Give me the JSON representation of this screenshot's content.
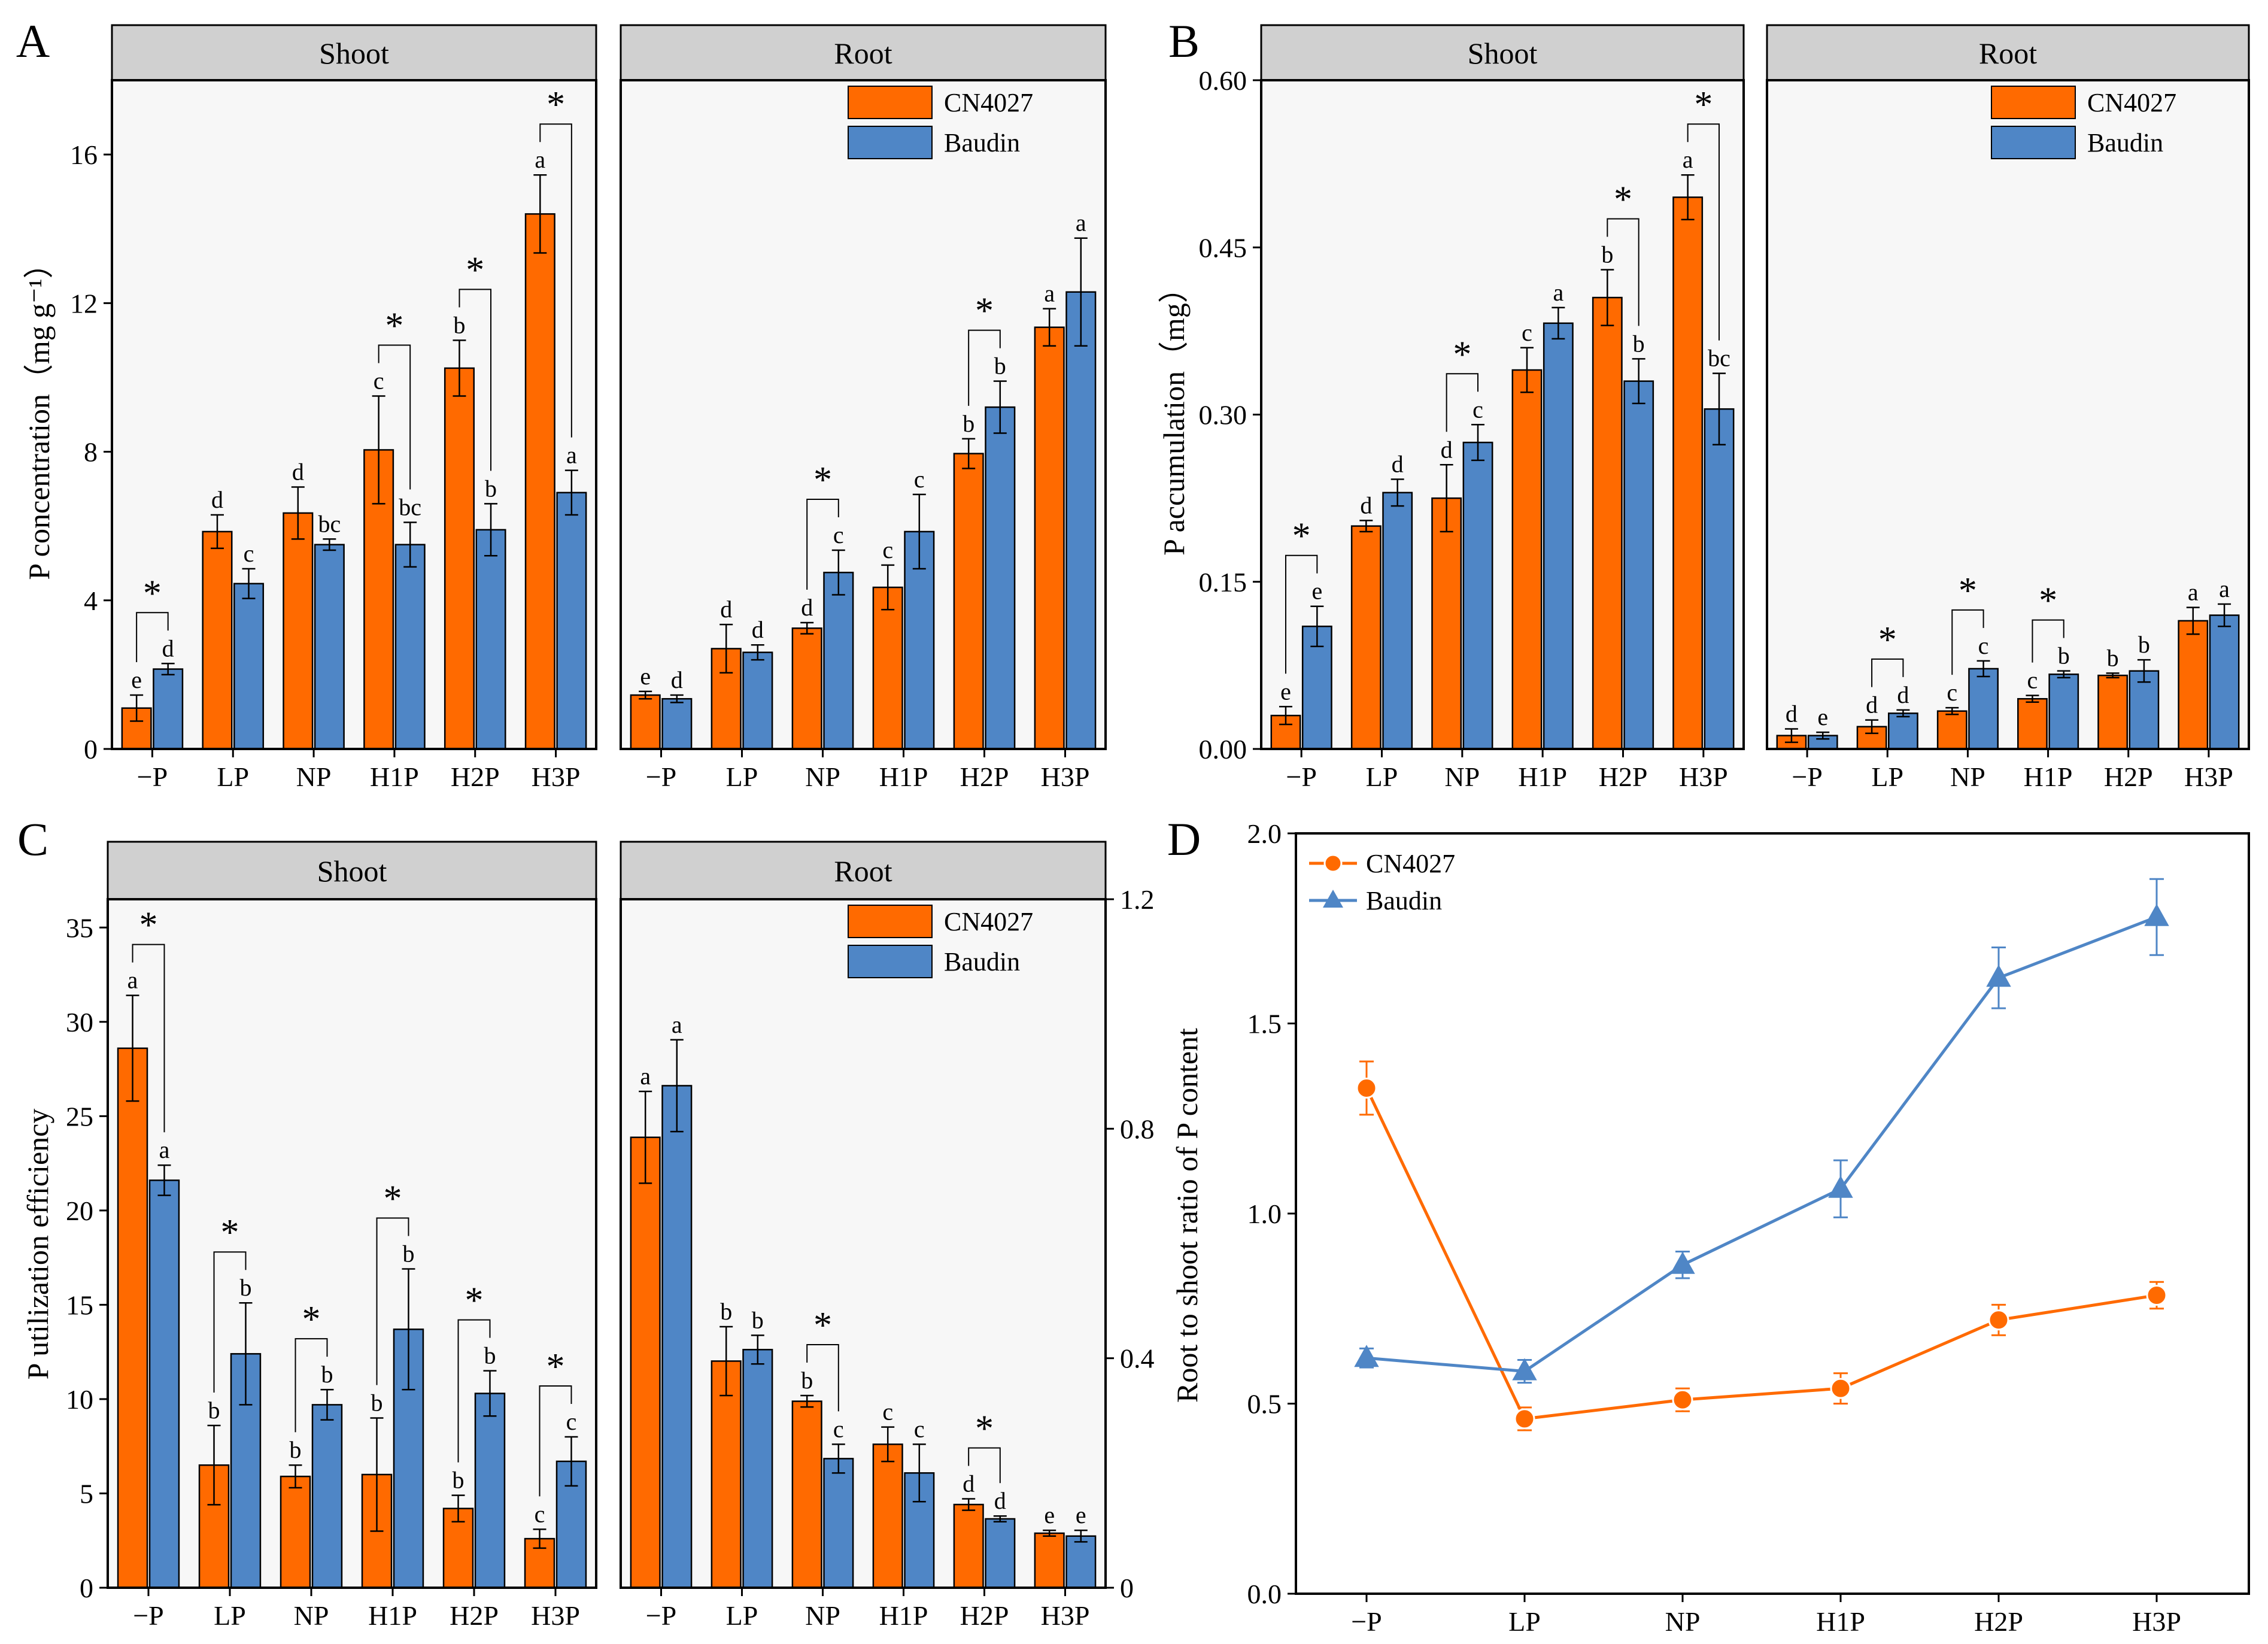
{
  "colors": {
    "cn4027": "#FF6A00",
    "baudin": "#4F86C6",
    "strip": "#D0D0D0",
    "panel_bg": "#F7F7F7"
  },
  "categories": [
    "−P",
    "LP",
    "NP",
    "H1P",
    "H2P",
    "H3P"
  ],
  "legend": [
    "CN4027",
    "Baudin"
  ],
  "chart_data": [
    {
      "panel": "A",
      "type": "bar",
      "ylabel": "P concentration（mg g⁻¹）",
      "ylim": [
        0,
        18
      ],
      "yticks": [
        0,
        4,
        8,
        12,
        16
      ],
      "strips": [
        "Shoot",
        "Root"
      ],
      "facets": [
        {
          "name": "Shoot",
          "series": [
            {
              "name": "CN4027",
              "values": [
                1.1,
                5.85,
                6.35,
                8.05,
                10.25,
                14.4
              ],
              "errors": [
                0.35,
                0.45,
                0.7,
                1.45,
                0.75,
                1.05
              ],
              "letters": [
                "e",
                "d",
                "d",
                "c",
                "b",
                "a"
              ]
            },
            {
              "name": "Baudin",
              "values": [
                2.15,
                4.45,
                5.5,
                5.5,
                5.9,
                6.9
              ],
              "errors": [
                0.15,
                0.4,
                0.15,
                0.6,
                0.7,
                0.6
              ],
              "letters": [
                "d",
                "c",
                "bc",
                "bc",
                "b",
                "a"
              ]
            }
          ],
          "significant": [
            true,
            false,
            false,
            true,
            true,
            true
          ]
        },
        {
          "name": "Root",
          "series": [
            {
              "name": "CN4027",
              "values": [
                1.45,
                2.7,
                3.25,
                4.35,
                7.95,
                11.35
              ],
              "errors": [
                0.1,
                0.65,
                0.15,
                0.6,
                0.4,
                0.5
              ],
              "letters": [
                "e",
                "d",
                "d",
                "c",
                "b",
                "a"
              ]
            },
            {
              "name": "Baudin",
              "values": [
                1.35,
                2.6,
                4.75,
                5.85,
                9.2,
                12.3
              ],
              "errors": [
                0.1,
                0.2,
                0.6,
                1.0,
                0.7,
                1.45
              ],
              "letters": [
                "d",
                "d",
                "c",
                "c",
                "b",
                "a"
              ]
            }
          ],
          "significant": [
            false,
            false,
            true,
            false,
            true,
            false
          ]
        }
      ]
    },
    {
      "panel": "B",
      "type": "bar",
      "ylabel": "P accumulation（mg）",
      "ylim": [
        0,
        0.6
      ],
      "yticks": [
        "0.00",
        "0.15",
        "0.30",
        "0.45",
        "0.60"
      ],
      "strips": [
        "Shoot",
        "Root"
      ],
      "facets": [
        {
          "name": "Shoot",
          "series": [
            {
              "name": "CN4027",
              "values": [
                0.03,
                0.2,
                0.225,
                0.34,
                0.405,
                0.495
              ],
              "errors": [
                0.008,
                0.005,
                0.03,
                0.02,
                0.025,
                0.02
              ],
              "letters": [
                "e",
                "d",
                "d",
                "c",
                "b",
                "a"
              ]
            },
            {
              "name": "Baudin",
              "values": [
                0.11,
                0.23,
                0.275,
                0.382,
                0.33,
                0.305
              ],
              "errors": [
                0.018,
                0.012,
                0.016,
                0.014,
                0.02,
                0.032
              ],
              "letters": [
                "e",
                "d",
                "c",
                "a",
                "b",
                "bc"
              ]
            }
          ],
          "significant": [
            true,
            false,
            true,
            false,
            true,
            true
          ]
        },
        {
          "name": "Root",
          "series": [
            {
              "name": "CN4027",
              "values": [
                0.012,
                0.02,
                0.034,
                0.045,
                0.066,
                0.115
              ],
              "errors": [
                0.006,
                0.006,
                0.003,
                0.003,
                0.002,
                0.012
              ],
              "letters": [
                "d",
                "d",
                "c",
                "c",
                "b",
                "a"
              ]
            },
            {
              "name": "Baudin",
              "values": [
                0.012,
                0.032,
                0.072,
                0.067,
                0.07,
                0.12
              ],
              "errors": [
                0.003,
                0.003,
                0.007,
                0.003,
                0.01,
                0.01
              ],
              "letters": [
                "e",
                "d",
                "c",
                "b",
                "b",
                "a"
              ]
            }
          ],
          "significant": [
            false,
            true,
            true,
            true,
            false,
            false
          ]
        }
      ]
    },
    {
      "panel": "C",
      "type": "bar",
      "ylabel": "P utilization efficiency",
      "strips": [
        "Shoot",
        "Root"
      ],
      "facets": [
        {
          "name": "Shoot",
          "ylim": [
            0,
            36.5
          ],
          "yticks": [
            0,
            5,
            10,
            15,
            20,
            25,
            30,
            35
          ],
          "series": [
            {
              "name": "CN4027",
              "values": [
                28.6,
                6.5,
                5.9,
                6.0,
                4.2,
                2.6
              ],
              "errors": [
                2.8,
                2.1,
                0.6,
                3.0,
                0.7,
                0.5
              ],
              "letters": [
                "a",
                "b",
                "b",
                "b",
                "b",
                "c"
              ]
            },
            {
              "name": "Baudin",
              "values": [
                21.6,
                12.4,
                9.7,
                13.7,
                10.3,
                6.7
              ],
              "errors": [
                0.8,
                2.7,
                0.8,
                3.2,
                1.2,
                1.3
              ],
              "letters": [
                "a",
                "b",
                "b",
                "b",
                "b",
                "c"
              ]
            }
          ],
          "significant": [
            true,
            true,
            true,
            true,
            true,
            true
          ]
        },
        {
          "name": "Root",
          "ylim": [
            0,
            1.2
          ],
          "yticks": [
            "0",
            "0.4",
            "0.8",
            "1.2"
          ],
          "series": [
            {
              "name": "CN4027",
              "values": [
                0.785,
                0.395,
                0.325,
                0.25,
                0.145,
                0.095
              ],
              "errors": [
                0.08,
                0.06,
                0.01,
                0.03,
                0.01,
                0.005
              ],
              "letters": [
                "a",
                "b",
                "b",
                "c",
                "d",
                "e"
              ]
            },
            {
              "name": "Baudin",
              "values": [
                0.875,
                0.415,
                0.225,
                0.2,
                0.12,
                0.09
              ],
              "errors": [
                0.08,
                0.025,
                0.025,
                0.05,
                0.005,
                0.01
              ],
              "letters": [
                "a",
                "b",
                "c",
                "c",
                "d",
                "e"
              ]
            }
          ],
          "significant": [
            false,
            false,
            true,
            false,
            true,
            false
          ]
        }
      ]
    },
    {
      "panel": "D",
      "type": "line",
      "ylabel": "Root to shoot ratio of P content",
      "ylim": [
        0,
        2.0
      ],
      "yticks": [
        "0.0",
        "0.5",
        "1.0",
        "1.5",
        "2.0"
      ],
      "series": [
        {
          "name": "CN4027",
          "marker": "circle",
          "values": [
            1.33,
            0.46,
            0.51,
            0.54,
            0.72,
            0.785
          ],
          "errors": [
            0.07,
            0.03,
            0.03,
            0.04,
            0.04,
            0.035
          ]
        },
        {
          "name": "Baudin",
          "marker": "triangle",
          "values": [
            0.62,
            0.585,
            0.865,
            1.065,
            1.62,
            1.78
          ],
          "errors": [
            0.025,
            0.03,
            0.035,
            0.075,
            0.08,
            0.1
          ]
        }
      ]
    }
  ]
}
